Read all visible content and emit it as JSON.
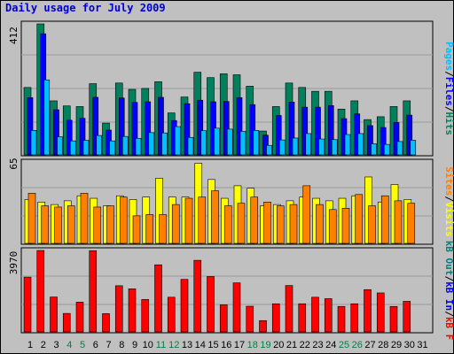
{
  "title": "Daily usage for July 2009",
  "colors": {
    "title": "#0000cc",
    "frame_bg": "#c0c0c0",
    "plot_bg": "#c0c0c0",
    "grid": "#9a9a9a",
    "hits": "#00805c",
    "files": "#0000ff",
    "pages": "#00c0ff",
    "visits": "#ffff00",
    "sites": "#ff8000",
    "kbf": "#ff0000",
    "kbin": "#0000ff",
    "kbout": "#008080",
    "weekend_label": "#008040",
    "weekday_label": "#000000"
  },
  "chart_data": [
    {
      "type": "bar",
      "panel": "top",
      "ymax_label": "412",
      "ylim": [
        0,
        412
      ],
      "grid": true,
      "legend": [
        {
          "name": "Hits",
          "color": "#00805c"
        },
        {
          "name": "Files",
          "color": "#0000ff"
        },
        {
          "name": "Pages",
          "color": "#00c0ff"
        }
      ],
      "legend_separator": "/",
      "series": [
        {
          "name": "Hits",
          "values": [
            212,
            412,
            170,
            154,
            152,
            224,
            100,
            226,
            206,
            209,
            230,
            132,
            182,
            260,
            243,
            255,
            252,
            216,
            75,
            152,
            226,
            212,
            200,
            200,
            144,
            170,
            111,
            120,
            152,
            170,
            0
          ]
        },
        {
          "name": "Files",
          "values": [
            180,
            381,
            142,
            109,
            115,
            181,
            78,
            179,
            165,
            167,
            181,
            108,
            161,
            172,
            167,
            168,
            180,
            158,
            62,
            124,
            166,
            150,
            150,
            155,
            114,
            129,
            92,
            86,
            102,
            125,
            0
          ]
        },
        {
          "name": "Pages",
          "values": [
            77,
            236,
            57,
            44,
            46,
            61,
            44,
            58,
            52,
            70,
            69,
            89,
            55,
            76,
            84,
            81,
            74,
            77,
            30,
            47,
            53,
            67,
            50,
            48,
            64,
            67,
            35,
            33,
            42,
            46,
            0
          ]
        }
      ]
    },
    {
      "type": "bar",
      "panel": "middle",
      "ymax_label": "65",
      "ylim": [
        0,
        65
      ],
      "grid": true,
      "legend": [
        {
          "name": "Visits",
          "color": "#ffff00"
        },
        {
          "name": "Sites",
          "color": "#ff8000"
        }
      ],
      "legend_separator": "/",
      "series": [
        {
          "name": "Visits",
          "values": [
            35,
            33,
            31,
            34,
            38,
            36,
            30,
            38,
            35,
            37,
            52,
            37,
            37,
            64,
            51,
            36,
            46,
            44,
            30,
            31,
            34,
            37,
            36,
            34,
            36,
            38,
            53,
            33,
            47,
            35,
            0
          ]
        },
        {
          "name": "Sites",
          "values": [
            40,
            30,
            29,
            30,
            40,
            29,
            30,
            37,
            22,
            23,
            23,
            31,
            36,
            37,
            42,
            30,
            32,
            37,
            33,
            30,
            31,
            46,
            31,
            27,
            28,
            39,
            30,
            38,
            34,
            32,
            0
          ]
        }
      ]
    },
    {
      "type": "bar",
      "panel": "bottom",
      "ymax_label": "3970",
      "ylim": [
        0,
        3970
      ],
      "grid": true,
      "legend": [
        {
          "name": "kB F",
          "color": "#ff0000"
        },
        {
          "name": "kB In",
          "color": "#0000ff"
        },
        {
          "name": "kB Out",
          "color": "#008080"
        }
      ],
      "legend_separator": "/",
      "series": [
        {
          "name": "kB F",
          "values": [
            2670,
            3970,
            1700,
            900,
            1450,
            3960,
            890,
            2250,
            2100,
            1580,
            3270,
            1690,
            2560,
            3490,
            2700,
            1320,
            2390,
            1250,
            550,
            1370,
            2260,
            1370,
            1690,
            1620,
            1240,
            1370,
            2060,
            1900,
            1240,
            1490,
            0
          ]
        }
      ]
    }
  ],
  "days": [
    "1",
    "2",
    "3",
    "4",
    "5",
    "6",
    "7",
    "8",
    "9",
    "10",
    "11",
    "12",
    "13",
    "14",
    "15",
    "16",
    "17",
    "18",
    "19",
    "20",
    "21",
    "22",
    "23",
    "24",
    "25",
    "26",
    "27",
    "28",
    "29",
    "30",
    "31"
  ],
  "weekend_days": [
    "4",
    "5",
    "11",
    "12",
    "18",
    "19",
    "25",
    "26"
  ]
}
